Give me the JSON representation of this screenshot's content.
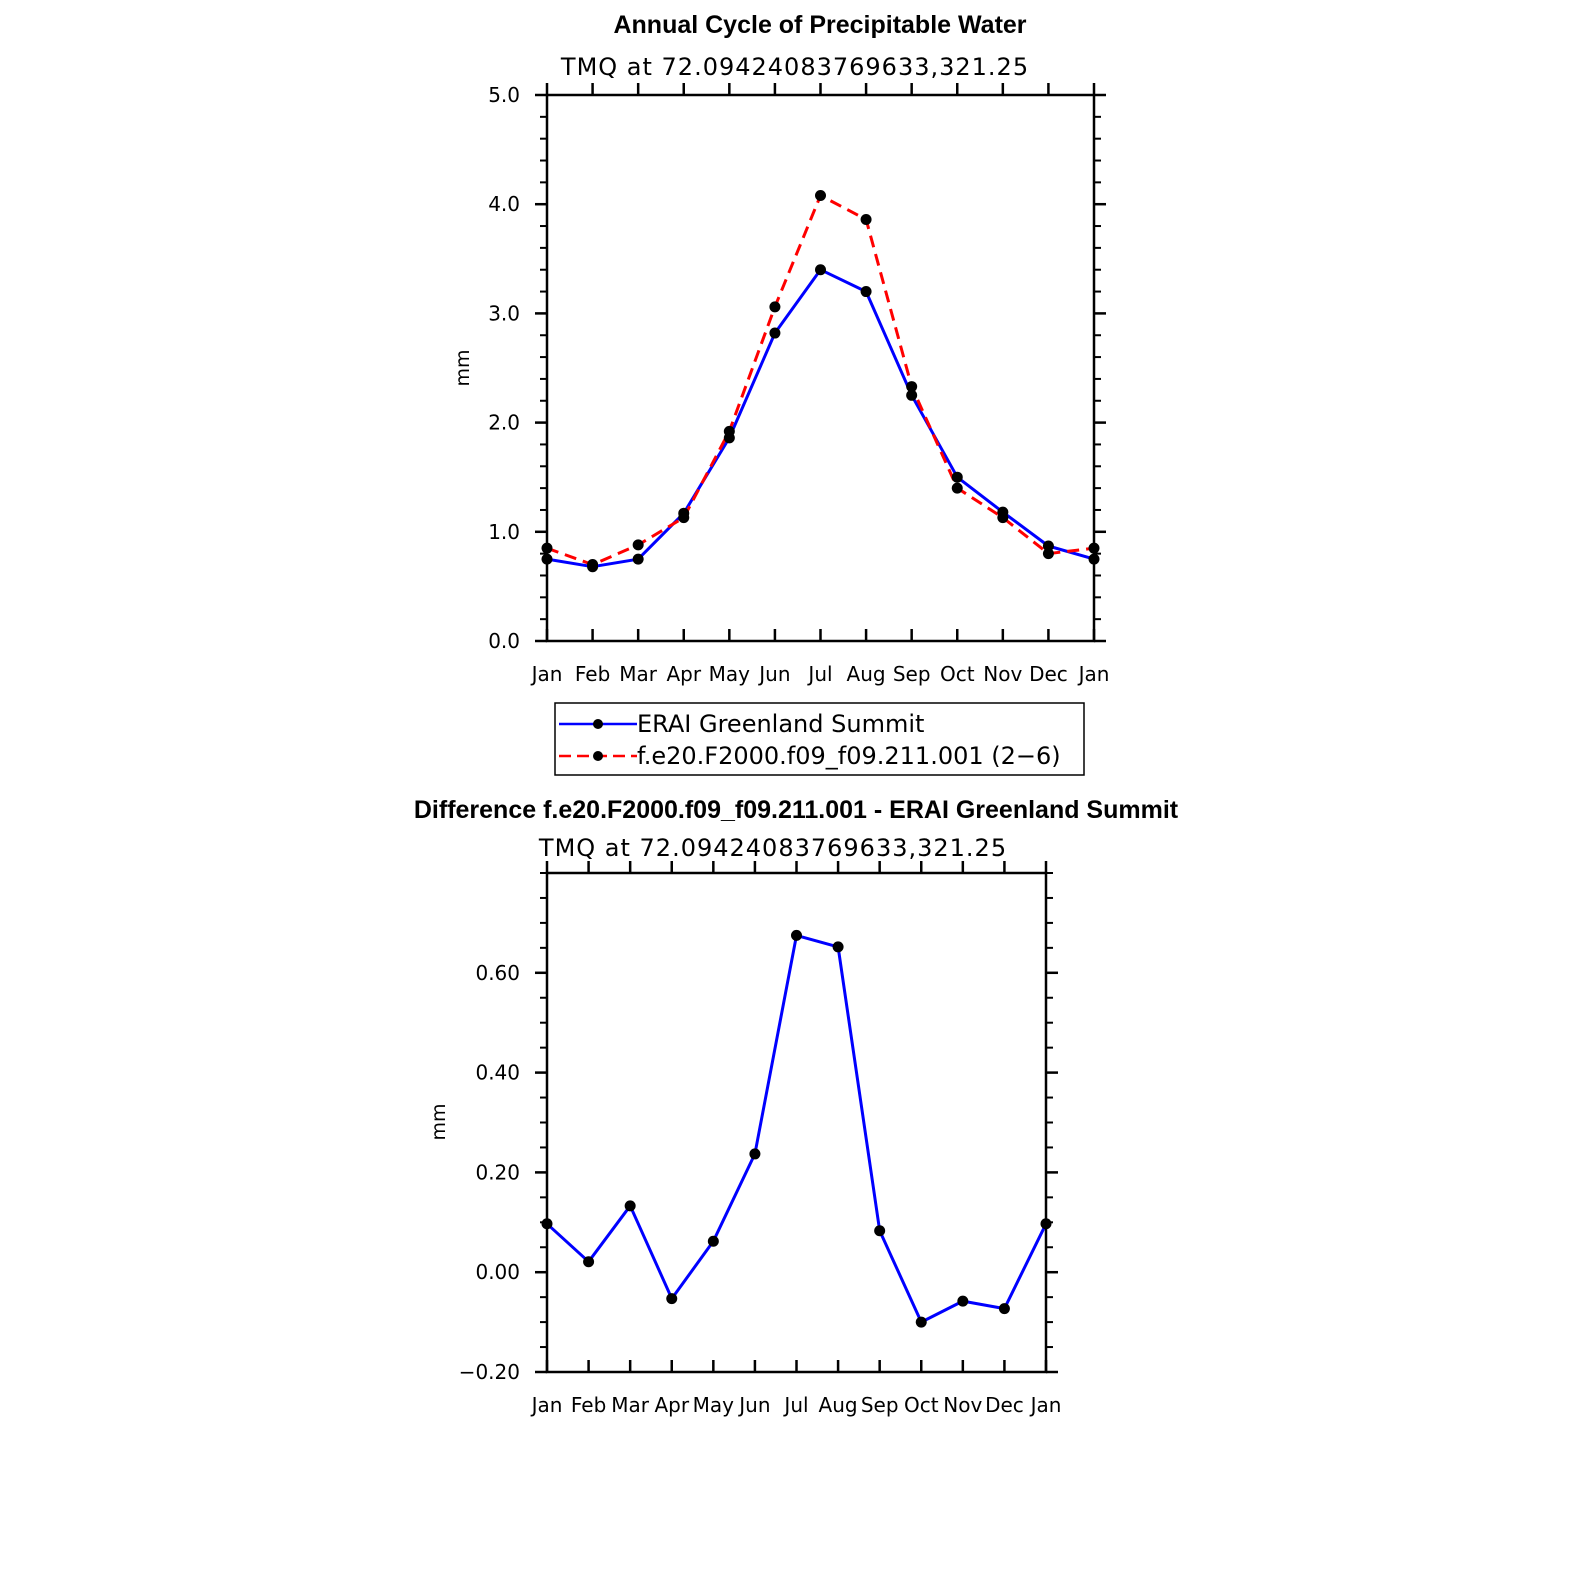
{
  "chart_data": [
    {
      "type": "line",
      "title": "Annual Cycle of Precipitable Water",
      "subtitle": "TMQ at 72.09424083769633,321.25",
      "xlabel": "",
      "ylabel": "mm",
      "categories": [
        "Jan",
        "Feb",
        "Mar",
        "Apr",
        "May",
        "Jun",
        "Jul",
        "Aug",
        "Sep",
        "Oct",
        "Nov",
        "Dec",
        "Jan"
      ],
      "ylim": [
        0.0,
        5.0
      ],
      "yticks": [
        "0.0",
        "1.0",
        "2.0",
        "3.0",
        "4.0",
        "5.0"
      ],
      "ytick_values": [
        0,
        1,
        2,
        3,
        4,
        5
      ],
      "legend_position": "bottom",
      "series": [
        {
          "name": "ERAI Greenland Summit",
          "color": "#0000ff",
          "style": "solid",
          "values": [
            0.75,
            0.68,
            0.75,
            1.17,
            1.86,
            2.82,
            3.4,
            3.2,
            2.25,
            1.5,
            1.18,
            0.87,
            0.75
          ]
        },
        {
          "name": "f.e20.F2000.f09_f09.211.001 (2−6)",
          "color": "#ff0000",
          "style": "dashed",
          "values": [
            0.85,
            0.7,
            0.88,
            1.13,
            1.92,
            3.06,
            4.08,
            3.86,
            2.33,
            1.4,
            1.13,
            0.8,
            0.85
          ]
        }
      ]
    },
    {
      "type": "line",
      "title": "Difference f.e20.F2000.f09_f09.211.001 - ERAI Greenland Summit",
      "subtitle": "TMQ at 72.09424083769633,321.25",
      "xlabel": "",
      "ylabel": "mm",
      "categories": [
        "Jan",
        "Feb",
        "Mar",
        "Apr",
        "May",
        "Jun",
        "Jul",
        "Aug",
        "Sep",
        "Oct",
        "Nov",
        "Dec",
        "Jan"
      ],
      "ylim": [
        -0.2,
        0.8
      ],
      "yticks": [
        "−0.20",
        "0.00",
        "0.20",
        "0.40",
        "0.60"
      ],
      "ytick_values": [
        -0.2,
        0.0,
        0.2,
        0.4,
        0.6
      ],
      "series": [
        {
          "name": "Difference",
          "color": "#0000ff",
          "style": "solid",
          "values": [
            0.097,
            0.021,
            0.133,
            -0.053,
            0.062,
            0.237,
            0.675,
            0.652,
            0.083,
            -0.1,
            -0.058,
            -0.073,
            0.097
          ]
        }
      ]
    }
  ]
}
